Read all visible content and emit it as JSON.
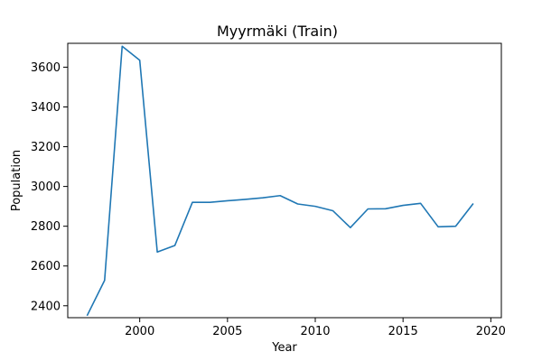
{
  "chart_data": {
    "type": "line",
    "title": "Myyrmäki (Train)",
    "xlabel": "Year",
    "ylabel": "Population",
    "xlim": [
      1995.9,
      2020.6
    ],
    "ylim": [
      2340,
      3720
    ],
    "xticks": [
      2000,
      2005,
      2010,
      2015,
      2020
    ],
    "yticks": [
      2400,
      2600,
      2800,
      3000,
      3200,
      3400,
      3600
    ],
    "grid": false,
    "line_color": "#1f77b4",
    "series": [
      {
        "x": [
          1997,
          1998,
          1999,
          2000,
          2001,
          2002,
          2003,
          2004,
          2005,
          2006,
          2007,
          2008,
          2009,
          2010,
          2011,
          2012,
          2013,
          2014,
          2015,
          2016,
          2017,
          2018,
          2019
        ],
        "values": [
          2350,
          2528,
          3705,
          3635,
          2670,
          2703,
          2920,
          2920,
          2928,
          2935,
          2943,
          2954,
          2912,
          2900,
          2878,
          2793,
          2887,
          2888,
          2905,
          2915,
          2797,
          2800,
          2914
        ]
      }
    ]
  }
}
